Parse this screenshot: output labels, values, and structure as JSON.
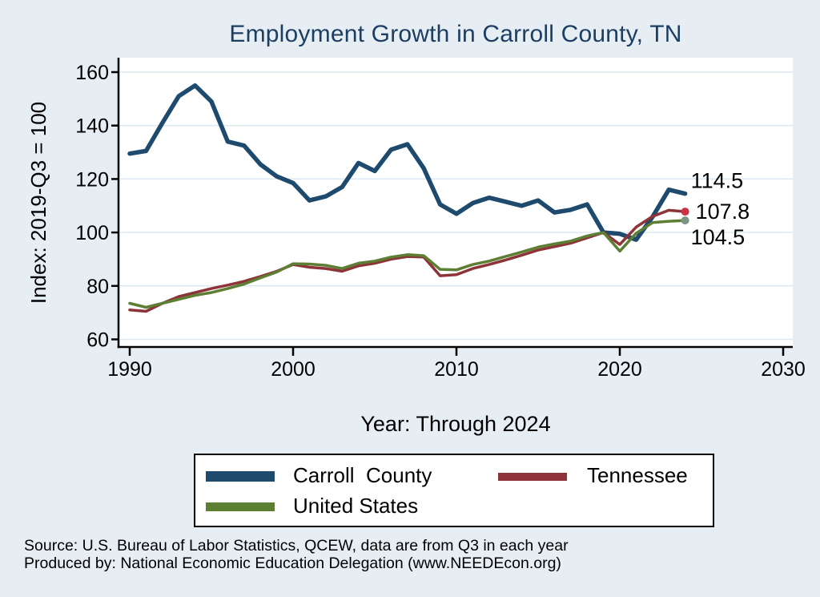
{
  "title": "Employment Growth in Carroll County, TN",
  "y_axis": {
    "title": "Index: 2019-Q3 = 100",
    "tick_values": [
      60,
      80,
      100,
      120,
      140,
      160
    ],
    "tick_labels": [
      "60",
      "80",
      "100",
      "120",
      "140",
      "160"
    ]
  },
  "x_axis": {
    "title": "Year: Through 2024",
    "tick_values": [
      1990,
      2000,
      2010,
      2020,
      2030
    ],
    "tick_labels": [
      "1990",
      "2000",
      "2010",
      "2020",
      "2030"
    ]
  },
  "chart_data": {
    "type": "line",
    "title": "Employment Growth in Carroll County, TN",
    "xlabel": "Year: Through 2024",
    "ylabel": "Index: 2019-Q3 = 100",
    "xlim": [
      1988,
      2030
    ],
    "ylim": [
      57,
      163
    ],
    "grid": true,
    "legend_position": "bottom",
    "x": [
      1990,
      1991,
      1992,
      1993,
      1994,
      1995,
      1996,
      1997,
      1998,
      1999,
      2000,
      2001,
      2002,
      2003,
      2004,
      2005,
      2006,
      2007,
      2008,
      2009,
      2010,
      2011,
      2012,
      2013,
      2014,
      2015,
      2016,
      2017,
      2018,
      2019,
      2020,
      2021,
      2022,
      2023,
      2024
    ],
    "series": [
      {
        "name": "Carroll  County",
        "color": "#1e4a6e",
        "end_label": "114.5",
        "values": [
          129.5,
          130.5,
          141,
          151,
          155,
          149,
          134,
          132.5,
          125.5,
          121,
          118.5,
          112,
          113.5,
          117,
          126,
          123,
          131,
          133,
          124,
          110.5,
          107,
          111,
          113,
          111.5,
          110,
          112,
          107.5,
          108.5,
          110.5,
          100,
          99.5,
          97.3,
          105.8,
          116,
          114.5
        ]
      },
      {
        "name": "Tennessee",
        "color": "#8e3338",
        "marker_color": "#cc3344",
        "end_label": "107.8",
        "values": [
          71,
          70.5,
          73.5,
          76,
          77.5,
          79,
          80.3,
          81.7,
          83.5,
          85.5,
          88,
          87,
          86.5,
          85.5,
          87.5,
          88.5,
          90,
          91,
          90.8,
          83.8,
          84.2,
          86.5,
          88,
          89.7,
          91.5,
          93.4,
          94.7,
          96,
          98,
          100,
          95.5,
          102,
          106,
          108.3,
          107.8
        ]
      },
      {
        "name": "United States",
        "color": "#5d7f33",
        "marker_color": "#7e9484",
        "end_label": "104.5",
        "values": [
          73.5,
          72,
          73.5,
          75,
          76.5,
          77.5,
          79,
          80.7,
          83,
          85.2,
          88.3,
          88.2,
          87.7,
          86.5,
          88.5,
          89.3,
          90.8,
          91.7,
          91.3,
          86.2,
          86,
          88,
          89.3,
          91,
          92.7,
          94.5,
          95.7,
          96.8,
          98.7,
          100,
          93,
          99.7,
          103.7,
          104.2,
          104.5
        ]
      }
    ]
  },
  "legend": {
    "items": [
      {
        "label": "Carroll  County",
        "color": "#1e4a6e"
      },
      {
        "label": "Tennessee",
        "color": "#8e3338"
      },
      {
        "label": "United States",
        "color": "#5d7f33"
      }
    ]
  },
  "notes": [
    "Source: U.S. Bureau of Labor Statistics, QCEW, data are from Q3 in each year",
    "Produced by: National Economic Education Delegation (www.NEEDEcon.org)"
  ],
  "colors": {
    "background": "#e6eef3",
    "plot_background": "#ffffff",
    "grid_line": "#dde9f1",
    "axis": "#000000",
    "title": "#1d3e63",
    "text": "#000000"
  }
}
